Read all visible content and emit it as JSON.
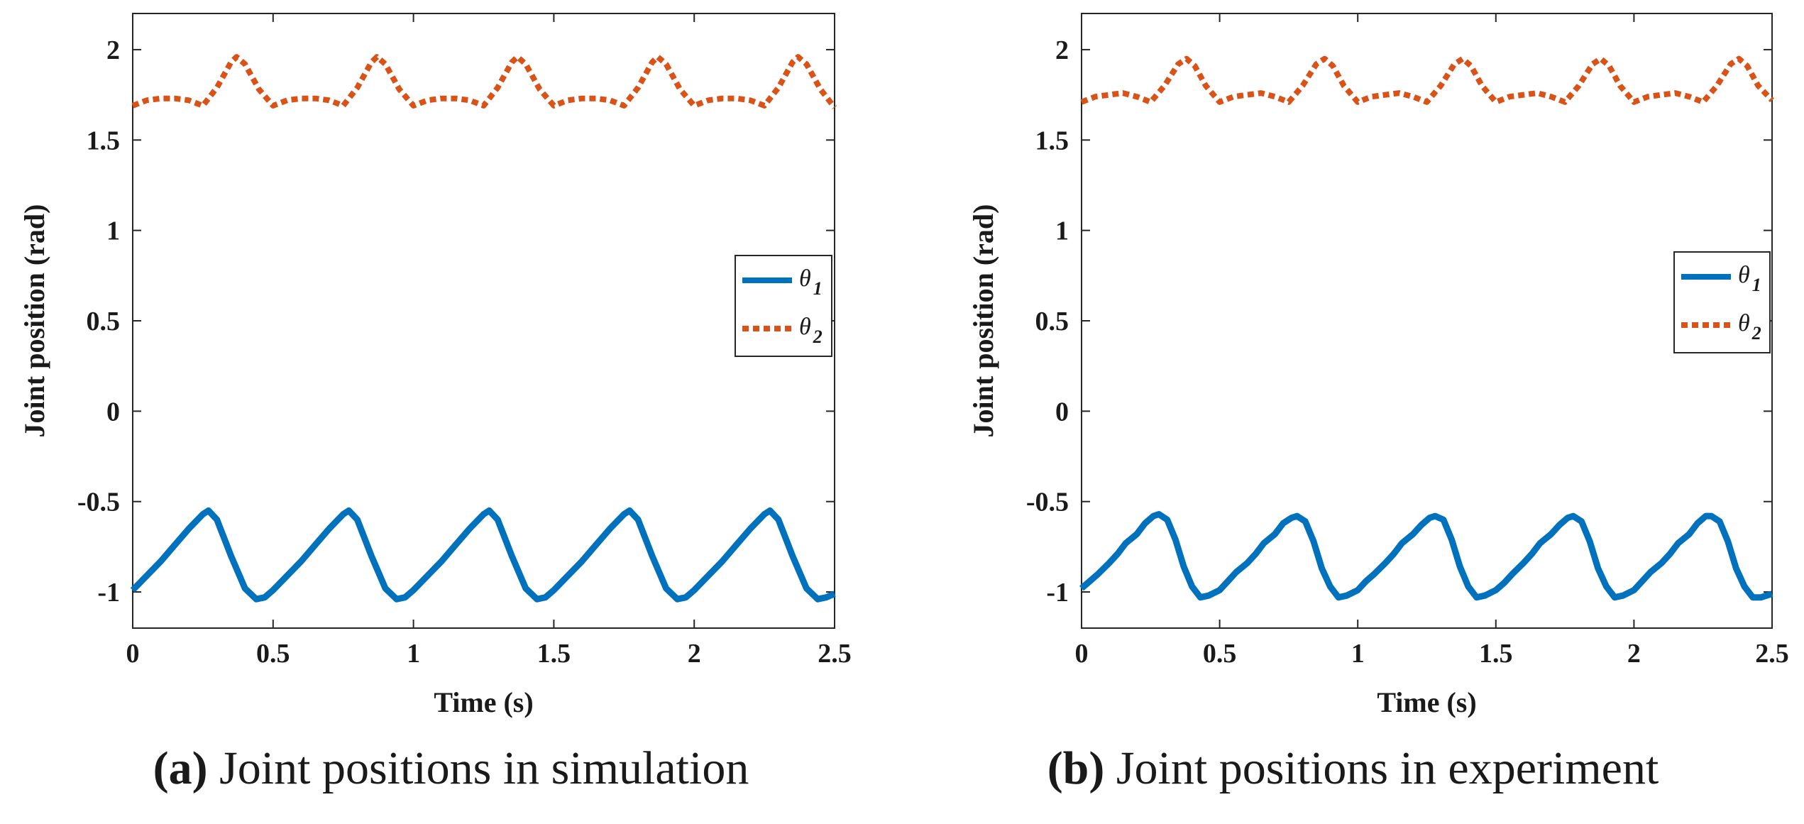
{
  "chart_data": [
    {
      "id": "a",
      "type": "line",
      "caption_label": "(a)",
      "caption_text": "Joint positions in simulation",
      "xlabel": "Time  (s)",
      "ylabel": "Joint position (rad)",
      "xlim": [
        0,
        2.5
      ],
      "ylim": [
        -1.2,
        2.2
      ],
      "xticks": [
        0,
        0.5,
        1,
        1.5,
        2,
        2.5
      ],
      "xtick_labels": [
        "0",
        "0.5",
        "1",
        "1.5",
        "2",
        "2.5"
      ],
      "yticks": [
        -1,
        -0.5,
        0,
        0.5,
        1,
        1.5,
        2
      ],
      "ytick_labels": [
        "-1",
        "-0.5",
        "0",
        "0.5",
        "1",
        "1.5",
        "2"
      ],
      "grid": false,
      "legend_position": "center-right",
      "series": [
        {
          "name": "θ1",
          "symbol": "θ",
          "sub": "1",
          "color": "#0072BD",
          "style": "solid",
          "x": [
            0,
            0.05,
            0.1,
            0.15,
            0.2,
            0.25,
            0.27,
            0.3,
            0.35,
            0.4,
            0.44,
            0.47,
            0.5,
            0.55,
            0.6,
            0.65,
            0.7,
            0.75,
            0.77,
            0.8,
            0.85,
            0.9,
            0.94,
            0.97,
            1.0,
            1.05,
            1.1,
            1.15,
            1.2,
            1.25,
            1.27,
            1.3,
            1.35,
            1.4,
            1.44,
            1.47,
            1.5,
            1.55,
            1.6,
            1.65,
            1.7,
            1.75,
            1.77,
            1.8,
            1.85,
            1.9,
            1.94,
            1.97,
            2.0,
            2.05,
            2.1,
            2.15,
            2.2,
            2.25,
            2.27,
            2.3,
            2.35,
            2.4,
            2.44,
            2.47,
            2.5
          ],
          "y": [
            -0.99,
            -0.91,
            -0.83,
            -0.74,
            -0.65,
            -0.57,
            -0.55,
            -0.6,
            -0.8,
            -0.98,
            -1.04,
            -1.03,
            -0.99,
            -0.91,
            -0.83,
            -0.74,
            -0.65,
            -0.57,
            -0.55,
            -0.6,
            -0.8,
            -0.98,
            -1.04,
            -1.03,
            -0.99,
            -0.91,
            -0.83,
            -0.74,
            -0.65,
            -0.57,
            -0.55,
            -0.6,
            -0.8,
            -0.98,
            -1.04,
            -1.03,
            -0.99,
            -0.91,
            -0.83,
            -0.74,
            -0.65,
            -0.57,
            -0.55,
            -0.6,
            -0.8,
            -0.98,
            -1.04,
            -1.03,
            -0.99,
            -0.91,
            -0.83,
            -0.74,
            -0.65,
            -0.57,
            -0.55,
            -0.6,
            -0.8,
            -0.98,
            -1.04,
            -1.03,
            -1.01
          ]
        },
        {
          "name": "θ2",
          "symbol": "θ",
          "sub": "2",
          "color": "#D95319",
          "style": "dotted",
          "x": [
            0,
            0.05,
            0.1,
            0.15,
            0.2,
            0.25,
            0.3,
            0.35,
            0.37,
            0.4,
            0.45,
            0.5,
            0.55,
            0.6,
            0.65,
            0.7,
            0.75,
            0.8,
            0.85,
            0.87,
            0.9,
            0.95,
            1.0,
            1.05,
            1.1,
            1.15,
            1.2,
            1.25,
            1.3,
            1.35,
            1.37,
            1.4,
            1.45,
            1.5,
            1.55,
            1.6,
            1.65,
            1.7,
            1.75,
            1.8,
            1.85,
            1.87,
            1.9,
            1.95,
            2.0,
            2.05,
            2.1,
            2.15,
            2.2,
            2.25,
            2.3,
            2.35,
            2.37,
            2.4,
            2.45,
            2.5
          ],
          "y": [
            1.69,
            1.72,
            1.73,
            1.73,
            1.72,
            1.69,
            1.79,
            1.93,
            1.96,
            1.92,
            1.78,
            1.69,
            1.72,
            1.73,
            1.73,
            1.72,
            1.69,
            1.79,
            1.93,
            1.96,
            1.92,
            1.78,
            1.69,
            1.72,
            1.73,
            1.73,
            1.72,
            1.69,
            1.79,
            1.93,
            1.96,
            1.92,
            1.78,
            1.69,
            1.72,
            1.73,
            1.73,
            1.72,
            1.69,
            1.79,
            1.93,
            1.96,
            1.92,
            1.78,
            1.69,
            1.72,
            1.73,
            1.73,
            1.72,
            1.69,
            1.79,
            1.93,
            1.96,
            1.92,
            1.78,
            1.68
          ]
        }
      ]
    },
    {
      "id": "b",
      "type": "line",
      "caption_label": "(b)",
      "caption_text": "Joint positions in experiment",
      "xlabel": "Time (s)",
      "ylabel": "Joint position (rad)",
      "xlim": [
        0,
        2.5
      ],
      "ylim": [
        -1.2,
        2.2
      ],
      "xticks": [
        0,
        0.5,
        1,
        1.5,
        2,
        2.5
      ],
      "xtick_labels": [
        "0",
        "0.5",
        "1",
        "1.5",
        "2",
        "2.5"
      ],
      "yticks": [
        -1,
        -0.5,
        0,
        0.5,
        1,
        1.5,
        2
      ],
      "ytick_labels": [
        "-1",
        "-0.5",
        "0",
        "0.5",
        "1",
        "1.5",
        "2"
      ],
      "grid": false,
      "legend_position": "center-right",
      "series": [
        {
          "name": "θ1",
          "symbol": "θ",
          "sub": "1",
          "color": "#0072BD",
          "style": "solid",
          "x": [
            0,
            0.03,
            0.06,
            0.1,
            0.13,
            0.16,
            0.2,
            0.23,
            0.26,
            0.28,
            0.31,
            0.34,
            0.37,
            0.4,
            0.43,
            0.46,
            0.5,
            0.53,
            0.56,
            0.6,
            0.63,
            0.66,
            0.7,
            0.73,
            0.76,
            0.78,
            0.81,
            0.84,
            0.87,
            0.9,
            0.93,
            0.96,
            1.0,
            1.03,
            1.06,
            1.1,
            1.13,
            1.16,
            1.2,
            1.23,
            1.26,
            1.28,
            1.31,
            1.34,
            1.37,
            1.4,
            1.43,
            1.46,
            1.5,
            1.53,
            1.56,
            1.6,
            1.63,
            1.66,
            1.7,
            1.73,
            1.76,
            1.78,
            1.81,
            1.84,
            1.87,
            1.9,
            1.93,
            1.96,
            2.0,
            2.03,
            2.06,
            2.1,
            2.13,
            2.16,
            2.2,
            2.23,
            2.26,
            2.28,
            2.31,
            2.34,
            2.37,
            2.4,
            2.43,
            2.46,
            2.5
          ],
          "y": [
            -0.98,
            -0.94,
            -0.9,
            -0.84,
            -0.79,
            -0.73,
            -0.68,
            -0.62,
            -0.58,
            -0.57,
            -0.6,
            -0.71,
            -0.86,
            -0.97,
            -1.03,
            -1.02,
            -0.99,
            -0.94,
            -0.89,
            -0.84,
            -0.79,
            -0.73,
            -0.68,
            -0.62,
            -0.59,
            -0.58,
            -0.61,
            -0.72,
            -0.87,
            -0.97,
            -1.03,
            -1.02,
            -0.99,
            -0.94,
            -0.9,
            -0.84,
            -0.79,
            -0.73,
            -0.68,
            -0.63,
            -0.59,
            -0.58,
            -0.6,
            -0.71,
            -0.86,
            -0.97,
            -1.03,
            -1.02,
            -0.99,
            -0.95,
            -0.9,
            -0.84,
            -0.79,
            -0.73,
            -0.68,
            -0.63,
            -0.59,
            -0.58,
            -0.61,
            -0.72,
            -0.87,
            -0.97,
            -1.03,
            -1.02,
            -0.99,
            -0.94,
            -0.89,
            -0.84,
            -0.79,
            -0.73,
            -0.68,
            -0.62,
            -0.58,
            -0.58,
            -0.61,
            -0.72,
            -0.87,
            -0.97,
            -1.03,
            -1.03,
            -1.01
          ]
        },
        {
          "name": "θ2",
          "symbol": "θ",
          "sub": "2",
          "color": "#D95319",
          "style": "dotted",
          "x": [
            0,
            0.05,
            0.1,
            0.15,
            0.2,
            0.25,
            0.3,
            0.35,
            0.38,
            0.41,
            0.45,
            0.5,
            0.55,
            0.6,
            0.65,
            0.7,
            0.75,
            0.8,
            0.85,
            0.88,
            0.91,
            0.95,
            1.0,
            1.05,
            1.1,
            1.15,
            1.2,
            1.25,
            1.3,
            1.35,
            1.38,
            1.41,
            1.45,
            1.5,
            1.55,
            1.6,
            1.65,
            1.7,
            1.75,
            1.8,
            1.85,
            1.88,
            1.91,
            1.95,
            2.0,
            2.05,
            2.1,
            2.15,
            2.2,
            2.25,
            2.3,
            2.35,
            2.38,
            2.41,
            2.45,
            2.5
          ],
          "y": [
            1.71,
            1.74,
            1.75,
            1.76,
            1.74,
            1.71,
            1.8,
            1.92,
            1.95,
            1.91,
            1.8,
            1.71,
            1.74,
            1.75,
            1.76,
            1.74,
            1.71,
            1.8,
            1.92,
            1.95,
            1.91,
            1.8,
            1.71,
            1.74,
            1.75,
            1.76,
            1.74,
            1.71,
            1.8,
            1.92,
            1.95,
            1.91,
            1.8,
            1.71,
            1.74,
            1.75,
            1.76,
            1.74,
            1.71,
            1.8,
            1.92,
            1.95,
            1.91,
            1.8,
            1.71,
            1.74,
            1.75,
            1.76,
            1.74,
            1.71,
            1.8,
            1.92,
            1.95,
            1.91,
            1.8,
            1.72
          ]
        }
      ]
    }
  ]
}
